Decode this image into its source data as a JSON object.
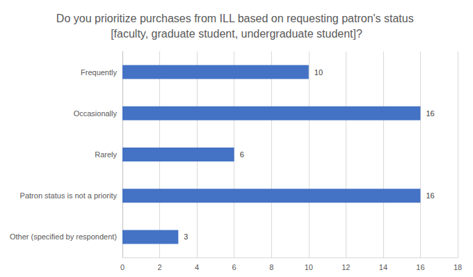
{
  "chart_data": {
    "type": "bar",
    "orientation": "horizontal",
    "title": "Do you prioritize purchases from ILL based on requesting patron's status [faculty, graduate student, undergraduate student]?",
    "categories": [
      "Frequently",
      "Occasionally",
      "Rarely",
      "Patron status is not a priority",
      "Other (specified by respondent)"
    ],
    "values": [
      10,
      16,
      6,
      16,
      3
    ],
    "color": "#4472c4",
    "xlim": [
      0,
      18
    ],
    "xticks": [
      0,
      2,
      4,
      6,
      8,
      10,
      12,
      14,
      16,
      18
    ],
    "grid": true,
    "data_labels": true
  }
}
